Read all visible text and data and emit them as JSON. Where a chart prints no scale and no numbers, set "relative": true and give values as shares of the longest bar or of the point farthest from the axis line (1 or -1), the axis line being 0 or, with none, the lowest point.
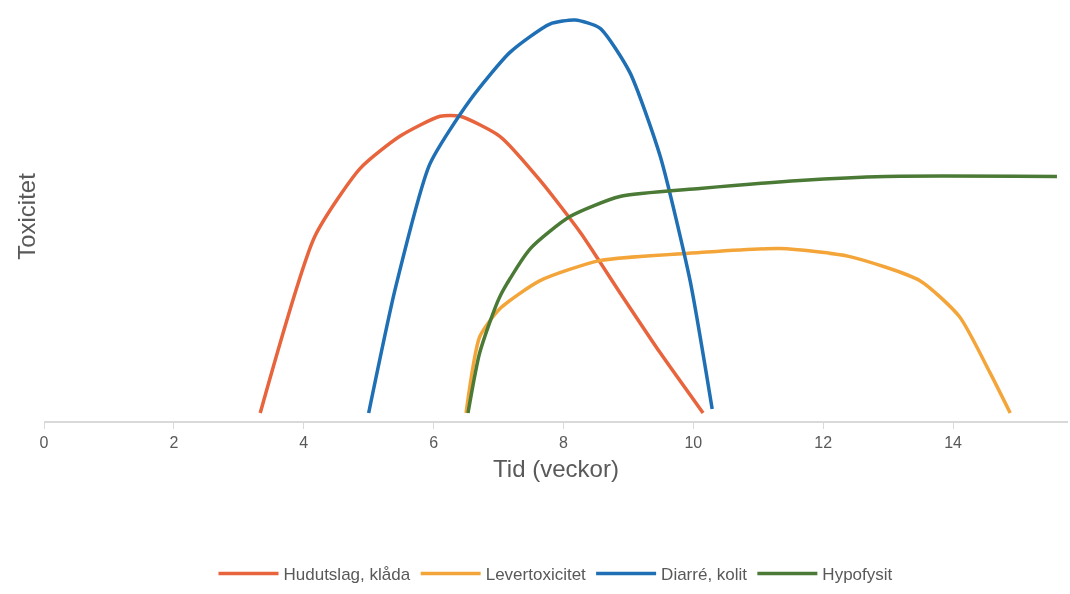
{
  "chart_data": {
    "type": "line",
    "relative": true,
    "xlabel": "Tid (veckor)",
    "ylabel": "Toxicitet",
    "xlim": [
      0,
      15.77
    ],
    "xticks": [
      0,
      2,
      4,
      6,
      8,
      10,
      12,
      14
    ],
    "legend": "bottom",
    "marker": "none",
    "line_style": "solid",
    "series": [
      {
        "name": "Hudutslag, klåda",
        "color": "#e8643c",
        "x": [
          3.33,
          4.17,
          4.87,
          5.48,
          6.1,
          6.41,
          7.02,
          7.64,
          8.26,
          8.87,
          9.49,
          10.15
        ],
        "values": [
          0.02,
          0.46,
          0.63,
          0.71,
          0.76,
          0.76,
          0.71,
          0.6,
          0.47,
          0.32,
          0.17,
          0.02
        ]
      },
      {
        "name": "Levertoxicitet",
        "color": "#f4a53a",
        "x": [
          6.5,
          6.71,
          7.02,
          7.64,
          8.56,
          10.1,
          11.34,
          12.41,
          13.49,
          14.1,
          14.57,
          14.88
        ],
        "values": [
          0.02,
          0.21,
          0.28,
          0.35,
          0.4,
          0.42,
          0.43,
          0.41,
          0.35,
          0.26,
          0.12,
          0.02
        ]
      },
      {
        "name": "Diarré, kolit",
        "color": "#1f6fb5",
        "x": [
          5.0,
          5.41,
          5.94,
          6.56,
          7.18,
          7.79,
          8.18,
          8.56,
          9.02,
          9.49,
          9.95,
          10.29
        ],
        "values": [
          0.02,
          0.33,
          0.64,
          0.8,
          0.92,
          0.99,
          1.0,
          0.98,
          0.87,
          0.66,
          0.35,
          0.03
        ]
      },
      {
        "name": "Hypofysit",
        "color": "#4a7a35",
        "x": [
          6.53,
          6.71,
          7.02,
          7.49,
          8.1,
          8.87,
          10.1,
          11.64,
          12.96,
          15.6
        ],
        "values": [
          0.02,
          0.17,
          0.31,
          0.43,
          0.51,
          0.56,
          0.58,
          0.6,
          0.61,
          0.61
        ]
      }
    ]
  }
}
